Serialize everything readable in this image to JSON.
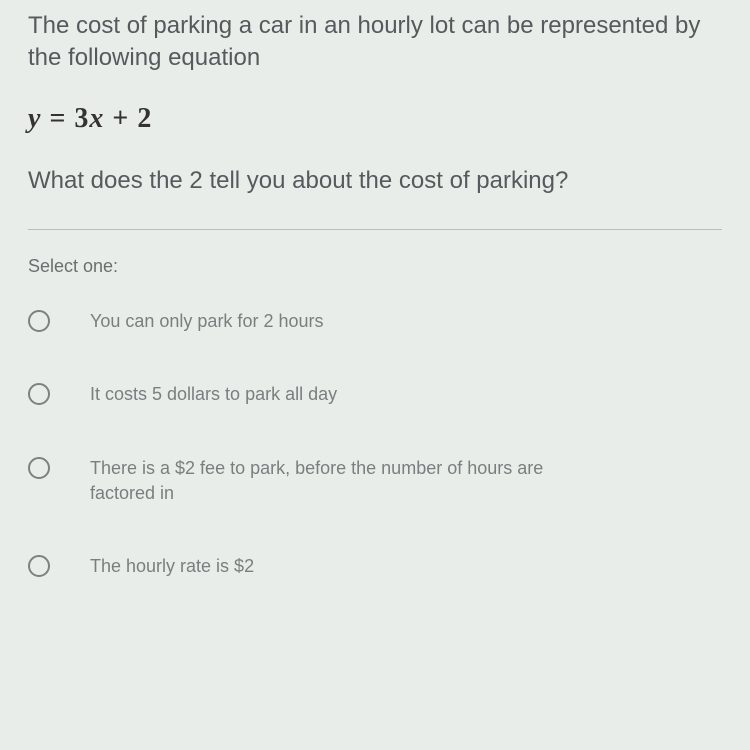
{
  "question": {
    "intro": "The cost of parking a car in an hourly lot can be represented by the following equation",
    "equation_y": "y",
    "equation_eq": " = ",
    "equation_coef": "3",
    "equation_x": "x",
    "equation_plus": " + 2",
    "followup": "What does the 2 tell you about the cost of parking?"
  },
  "select_label": "Select one:",
  "options": [
    {
      "text": "You can only park for 2 hours"
    },
    {
      "text": "It costs 5 dollars to park all day"
    },
    {
      "text": "There is a $2 fee to park, before the number of hours are factored in"
    },
    {
      "text": "The hourly rate is $2"
    }
  ],
  "styling": {
    "background_color": "#e8edea",
    "question_color": "#555a5c",
    "option_color": "#7a7e7f",
    "radio_border": "#7d8182",
    "divider_color": "#b8bebb",
    "question_fontsize": 24,
    "option_fontsize": 18,
    "equation_fontsize": 28
  }
}
